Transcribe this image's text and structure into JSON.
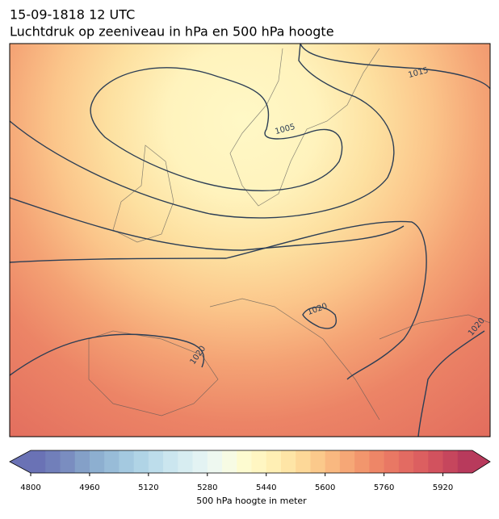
{
  "title": "15-09-1818 12 UTC",
  "subtitle": "Luchtdruk op zeeniveau in hPa en 500 hPa hoogte",
  "map": {
    "contour_labels": [
      "1015",
      "1005",
      "1020",
      "1020",
      "1020"
    ]
  },
  "colorbar": {
    "label": "500 hPa hoogte in meter",
    "lim": [
      4800,
      6000
    ],
    "ticks": [
      4800,
      4960,
      5120,
      5280,
      5440,
      5600,
      5760,
      5920
    ],
    "colors": [
      "#6a72b5",
      "#717fba",
      "#7a8dc0",
      "#84a0c8",
      "#8dafd0",
      "#98bcd8",
      "#a4c9e0",
      "#b0d4e6",
      "#bdddeb",
      "#cbe6ef",
      "#d7edf1",
      "#e3f3f3",
      "#eef8f0",
      "#f7fbe4",
      "#fdfbd0",
      "#fff6c2",
      "#ffefb4",
      "#fee5a6",
      "#fdd898",
      "#fbc98b",
      "#f9b880",
      "#f6a776",
      "#f2966d",
      "#ee8667",
      "#e97864",
      "#e36b62",
      "#dc5f60",
      "#d2525e",
      "#c6465d",
      "#b83a5c"
    ]
  }
}
